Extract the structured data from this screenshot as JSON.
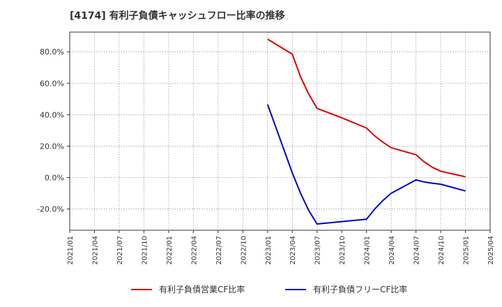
{
  "chart_data": {
    "type": "line",
    "title": "[4174]  有利子負債キャッシュフロー比率の推移",
    "xlabel": "",
    "ylabel": "",
    "x_tick_labels": [
      "2021/01",
      "2021/04",
      "2021/07",
      "2021/10",
      "2022/01",
      "2022/04",
      "2022/07",
      "2022/10",
      "2023/01",
      "2023/04",
      "2023/07",
      "2023/10",
      "2024/01",
      "2024/04",
      "2024/07",
      "2024/10",
      "2025/01",
      "2025/04"
    ],
    "y_tick_labels": [
      "80.0%",
      "60.0%",
      "40.0%",
      "20.0%",
      "0.0%",
      "-20.0%"
    ],
    "y_ticks": [
      80,
      60,
      40,
      20,
      0,
      -20
    ],
    "ylim": [
      -33.5,
      92.5
    ],
    "grid": true,
    "legend_position": "bottom",
    "series": [
      {
        "name": "有利子負債営業CF比率",
        "color": "#dd0000",
        "points": [
          {
            "x": "2023/01",
            "y": 88
          },
          {
            "x": "2023/04",
            "y": 78.5
          },
          {
            "x": "2023/05",
            "y": 64
          },
          {
            "x": "2023/06",
            "y": 53
          },
          {
            "x": "2023/07",
            "y": 44
          },
          {
            "x": "2023/10",
            "y": 38
          },
          {
            "x": "2024/01",
            "y": 31.5
          },
          {
            "x": "2024/02",
            "y": 26.5
          },
          {
            "x": "2024/03",
            "y": 22.5
          },
          {
            "x": "2024/04",
            "y": 19
          },
          {
            "x": "2024/07",
            "y": 14.5
          },
          {
            "x": "2024/08",
            "y": 10
          },
          {
            "x": "2024/09",
            "y": 6.5
          },
          {
            "x": "2024/10",
            "y": 4
          },
          {
            "x": "2025/01",
            "y": 0.5
          }
        ]
      },
      {
        "name": "有利子負債フリーCF比率",
        "color": "#0000cc",
        "points": [
          {
            "x": "2023/01",
            "y": 46.5
          },
          {
            "x": "2023/04",
            "y": 3
          },
          {
            "x": "2023/05",
            "y": -10
          },
          {
            "x": "2023/06",
            "y": -21
          },
          {
            "x": "2023/07",
            "y": -29.5
          },
          {
            "x": "2023/10",
            "y": -28
          },
          {
            "x": "2024/01",
            "y": -26.5
          },
          {
            "x": "2024/02",
            "y": -20
          },
          {
            "x": "2024/03",
            "y": -14.5
          },
          {
            "x": "2024/04",
            "y": -10
          },
          {
            "x": "2024/07",
            "y": -1.5
          },
          {
            "x": "2024/08",
            "y": -2.8
          },
          {
            "x": "2024/09",
            "y": -3.6
          },
          {
            "x": "2024/10",
            "y": -4.2
          },
          {
            "x": "2025/01",
            "y": -8.5
          }
        ]
      }
    ]
  }
}
